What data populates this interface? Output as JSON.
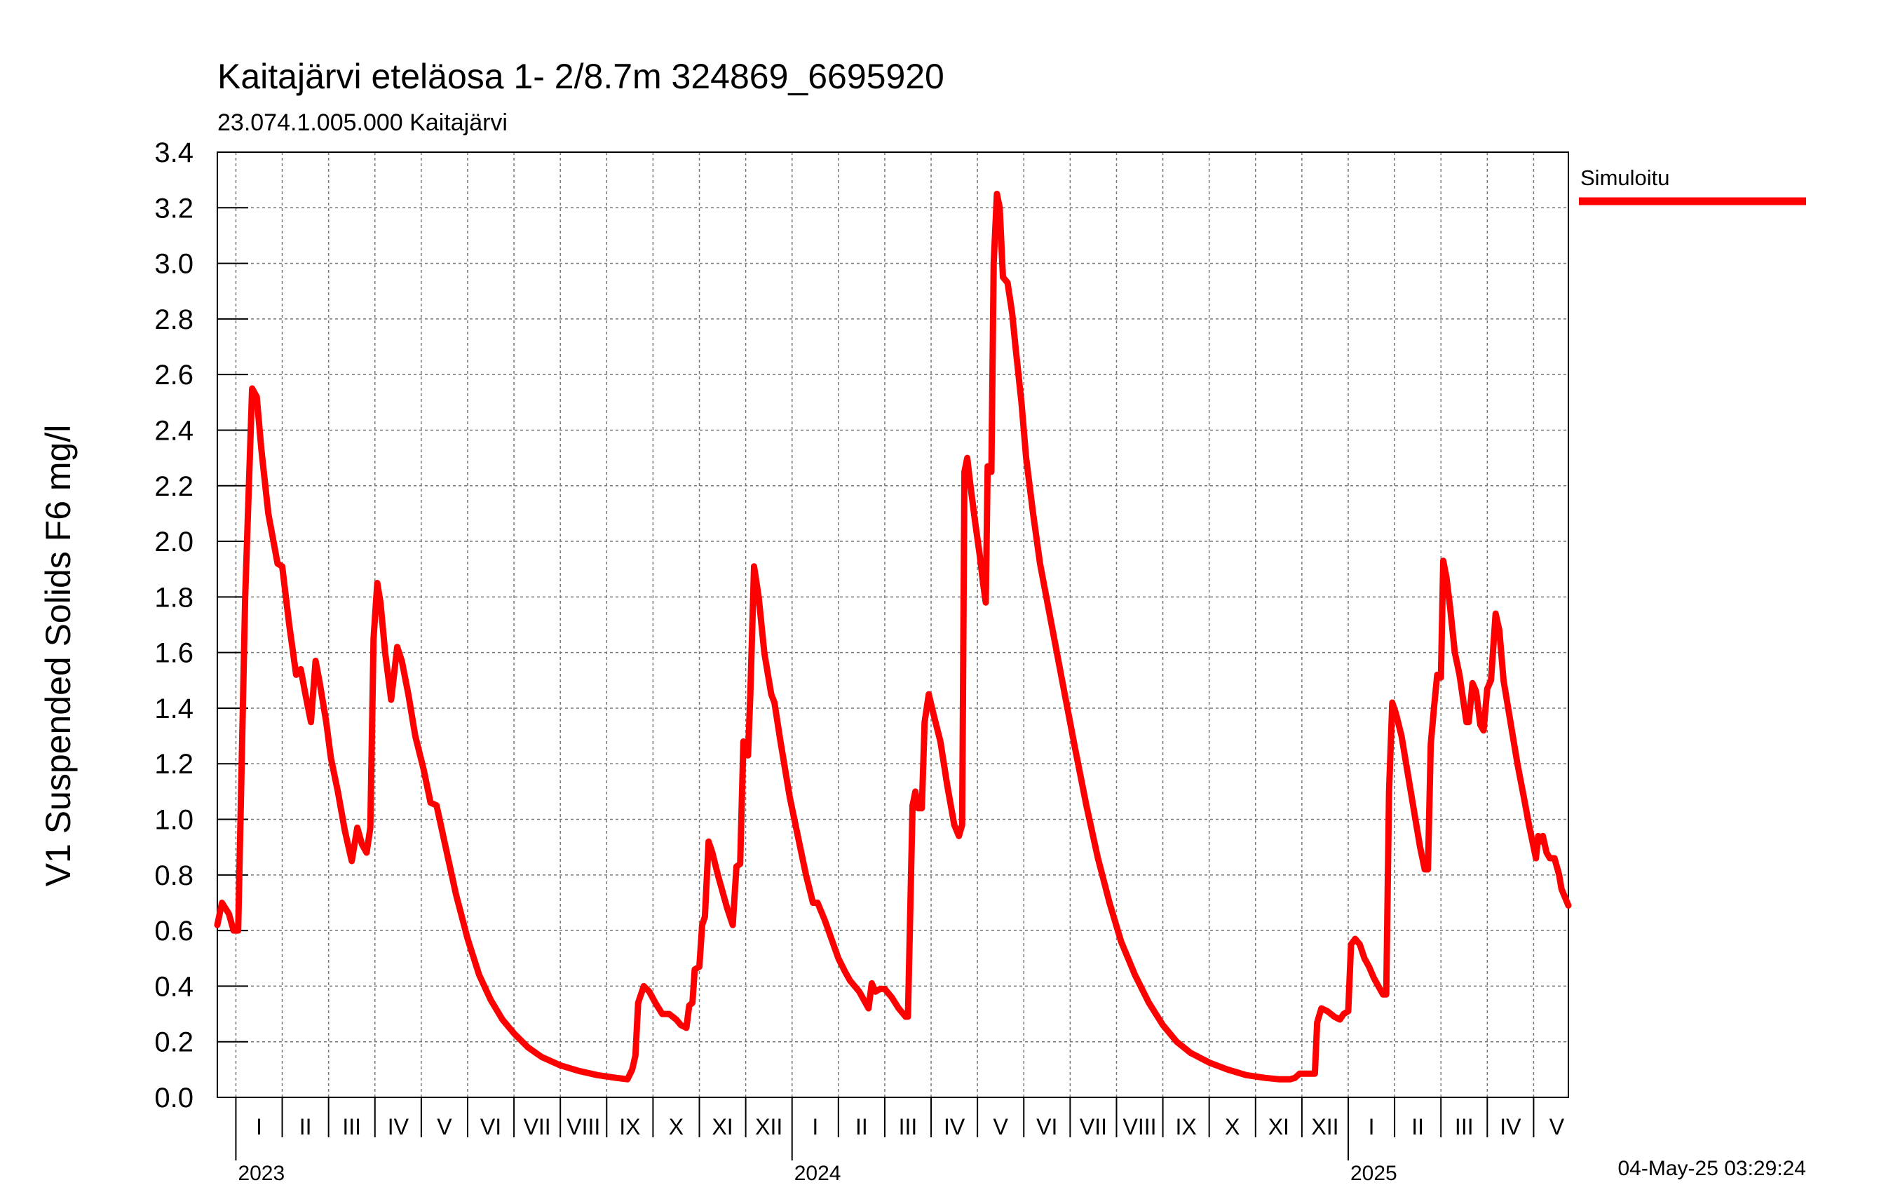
{
  "chart_data": {
    "type": "line",
    "title": "Kaitajärvi eteläosa  1- 2/8.7m  324869_6695920",
    "subtitle": "23.074.1.005.000 Kaitajärvi",
    "ylabel": "V1 Suspended Solids F6 mg/l",
    "xlabel": "",
    "ylim": [
      0,
      3.4
    ],
    "yticks": [
      "0.0",
      "0.2",
      "0.4",
      "0.6",
      "0.8",
      "1.0",
      "1.2",
      "1.4",
      "1.6",
      "1.8",
      "2.0",
      "2.2",
      "2.4",
      "2.6",
      "2.8",
      "3.0",
      "3.2",
      "3.4"
    ],
    "x_unit": "months since 2023-01-01",
    "xlim": [
      -0.4,
      28.75
    ],
    "year_labels": [
      {
        "label": "2023",
        "x": 0
      },
      {
        "label": "2024",
        "x": 12
      },
      {
        "label": "2025",
        "x": 24
      }
    ],
    "month_labels": [
      "I",
      "II",
      "III",
      "IV",
      "V",
      "VI",
      "VII",
      "VIII",
      "IX",
      "X",
      "XI",
      "XII",
      "I",
      "II",
      "III",
      "IV",
      "V",
      "VI",
      "VII",
      "VIII",
      "IX",
      "X",
      "XI",
      "XII",
      "I",
      "II",
      "III",
      "IV",
      "V"
    ],
    "legend": [
      {
        "label": "Simuloitu",
        "color": "#ff0000"
      }
    ],
    "timestamp": "04-May-25 03:29:24",
    "series": [
      {
        "name": "Simuloitu",
        "color": "#ff0000",
        "points": [
          [
            -0.4,
            0.62
          ],
          [
            -0.3,
            0.7
          ],
          [
            -0.15,
            0.66
          ],
          [
            -0.05,
            0.6
          ],
          [
            0.05,
            0.6
          ],
          [
            0.2,
            1.8
          ],
          [
            0.35,
            2.55
          ],
          [
            0.45,
            2.52
          ],
          [
            0.55,
            2.33
          ],
          [
            0.7,
            2.1
          ],
          [
            0.9,
            1.92
          ],
          [
            1.0,
            1.91
          ],
          [
            1.15,
            1.7
          ],
          [
            1.3,
            1.52
          ],
          [
            1.4,
            1.54
          ],
          [
            1.5,
            1.45
          ],
          [
            1.62,
            1.35
          ],
          [
            1.72,
            1.57
          ],
          [
            1.8,
            1.5
          ],
          [
            1.95,
            1.35
          ],
          [
            2.05,
            1.22
          ],
          [
            2.2,
            1.1
          ],
          [
            2.35,
            0.96
          ],
          [
            2.5,
            0.85
          ],
          [
            2.62,
            0.97
          ],
          [
            2.72,
            0.91
          ],
          [
            2.82,
            0.88
          ],
          [
            2.9,
            0.97
          ],
          [
            2.97,
            1.65
          ],
          [
            3.05,
            1.85
          ],
          [
            3.12,
            1.78
          ],
          [
            3.22,
            1.6
          ],
          [
            3.35,
            1.43
          ],
          [
            3.48,
            1.62
          ],
          [
            3.58,
            1.57
          ],
          [
            3.72,
            1.45
          ],
          [
            3.87,
            1.3
          ],
          [
            4.05,
            1.18
          ],
          [
            4.2,
            1.06
          ],
          [
            4.33,
            1.05
          ],
          [
            4.5,
            0.92
          ],
          [
            4.75,
            0.73
          ],
          [
            5.0,
            0.57
          ],
          [
            5.25,
            0.44
          ],
          [
            5.5,
            0.35
          ],
          [
            5.75,
            0.28
          ],
          [
            6.0,
            0.23
          ],
          [
            6.3,
            0.18
          ],
          [
            6.6,
            0.145
          ],
          [
            7.0,
            0.115
          ],
          [
            7.4,
            0.095
          ],
          [
            7.8,
            0.08
          ],
          [
            8.2,
            0.07
          ],
          [
            8.45,
            0.065
          ],
          [
            8.55,
            0.1
          ],
          [
            8.62,
            0.15
          ],
          [
            8.68,
            0.34
          ],
          [
            8.8,
            0.4
          ],
          [
            8.92,
            0.38
          ],
          [
            9.05,
            0.34
          ],
          [
            9.2,
            0.3
          ],
          [
            9.35,
            0.3
          ],
          [
            9.5,
            0.28
          ],
          [
            9.6,
            0.26
          ],
          [
            9.72,
            0.25
          ],
          [
            9.78,
            0.33
          ],
          [
            9.85,
            0.34
          ],
          [
            9.9,
            0.46
          ],
          [
            10.0,
            0.47
          ],
          [
            10.06,
            0.62
          ],
          [
            10.12,
            0.65
          ],
          [
            10.2,
            0.92
          ],
          [
            10.28,
            0.88
          ],
          [
            10.4,
            0.8
          ],
          [
            10.6,
            0.68
          ],
          [
            10.72,
            0.62
          ],
          [
            10.8,
            0.83
          ],
          [
            10.88,
            0.84
          ],
          [
            10.95,
            1.28
          ],
          [
            11.05,
            1.23
          ],
          [
            11.1,
            1.45
          ],
          [
            11.18,
            1.91
          ],
          [
            11.28,
            1.8
          ],
          [
            11.4,
            1.6
          ],
          [
            11.55,
            1.45
          ],
          [
            11.62,
            1.42
          ],
          [
            11.75,
            1.28
          ],
          [
            11.95,
            1.08
          ],
          [
            12.15,
            0.92
          ],
          [
            12.3,
            0.8
          ],
          [
            12.45,
            0.7
          ],
          [
            12.55,
            0.7
          ],
          [
            12.7,
            0.64
          ],
          [
            12.85,
            0.57
          ],
          [
            13.0,
            0.5
          ],
          [
            13.15,
            0.45
          ],
          [
            13.25,
            0.42
          ],
          [
            13.35,
            0.4
          ],
          [
            13.45,
            0.38
          ],
          [
            13.55,
            0.35
          ],
          [
            13.65,
            0.32
          ],
          [
            13.72,
            0.41
          ],
          [
            13.8,
            0.38
          ],
          [
            13.9,
            0.39
          ],
          [
            14.0,
            0.39
          ],
          [
            14.15,
            0.36
          ],
          [
            14.3,
            0.32
          ],
          [
            14.45,
            0.29
          ],
          [
            14.5,
            0.29
          ],
          [
            14.6,
            1.05
          ],
          [
            14.66,
            1.1
          ],
          [
            14.72,
            1.04
          ],
          [
            14.8,
            1.04
          ],
          [
            14.86,
            1.35
          ],
          [
            14.95,
            1.45
          ],
          [
            15.05,
            1.38
          ],
          [
            15.2,
            1.28
          ],
          [
            15.35,
            1.12
          ],
          [
            15.5,
            0.98
          ],
          [
            15.6,
            0.94
          ],
          [
            15.67,
            0.98
          ],
          [
            15.72,
            2.25
          ],
          [
            15.78,
            2.3
          ],
          [
            15.85,
            2.2
          ],
          [
            15.95,
            2.07
          ],
          [
            16.05,
            1.95
          ],
          [
            16.12,
            1.85
          ],
          [
            16.18,
            1.78
          ],
          [
            16.22,
            2.27
          ],
          [
            16.3,
            2.25
          ],
          [
            16.35,
            3.0
          ],
          [
            16.42,
            3.25
          ],
          [
            16.48,
            3.2
          ],
          [
            16.55,
            2.95
          ],
          [
            16.65,
            2.93
          ],
          [
            16.75,
            2.82
          ],
          [
            16.82,
            2.7
          ],
          [
            16.95,
            2.5
          ],
          [
            17.05,
            2.3
          ],
          [
            17.2,
            2.1
          ],
          [
            17.35,
            1.92
          ],
          [
            17.6,
            1.7
          ],
          [
            17.85,
            1.48
          ],
          [
            18.1,
            1.26
          ],
          [
            18.35,
            1.05
          ],
          [
            18.6,
            0.86
          ],
          [
            18.85,
            0.7
          ],
          [
            19.1,
            0.56
          ],
          [
            19.4,
            0.44
          ],
          [
            19.7,
            0.34
          ],
          [
            20.0,
            0.26
          ],
          [
            20.3,
            0.2
          ],
          [
            20.6,
            0.16
          ],
          [
            21.0,
            0.125
          ],
          [
            21.4,
            0.1
          ],
          [
            21.8,
            0.08
          ],
          [
            22.2,
            0.07
          ],
          [
            22.5,
            0.065
          ],
          [
            22.75,
            0.065
          ],
          [
            22.85,
            0.07
          ],
          [
            22.95,
            0.085
          ],
          [
            23.2,
            0.085
          ],
          [
            23.28,
            0.085
          ],
          [
            23.33,
            0.27
          ],
          [
            23.42,
            0.32
          ],
          [
            23.55,
            0.31
          ],
          [
            23.7,
            0.29
          ],
          [
            23.82,
            0.28
          ],
          [
            23.9,
            0.3
          ],
          [
            24.0,
            0.31
          ],
          [
            24.06,
            0.55
          ],
          [
            24.15,
            0.57
          ],
          [
            24.25,
            0.55
          ],
          [
            24.35,
            0.5
          ],
          [
            24.45,
            0.47
          ],
          [
            24.55,
            0.43
          ],
          [
            24.65,
            0.4
          ],
          [
            24.75,
            0.37
          ],
          [
            24.82,
            0.37
          ],
          [
            24.88,
            1.1
          ],
          [
            24.95,
            1.42
          ],
          [
            25.03,
            1.38
          ],
          [
            25.15,
            1.3
          ],
          [
            25.3,
            1.15
          ],
          [
            25.45,
            1.0
          ],
          [
            25.55,
            0.9
          ],
          [
            25.65,
            0.82
          ],
          [
            25.72,
            0.82
          ],
          [
            25.78,
            1.27
          ],
          [
            25.85,
            1.4
          ],
          [
            25.92,
            1.52
          ],
          [
            26.0,
            1.51
          ],
          [
            26.05,
            1.93
          ],
          [
            26.12,
            1.87
          ],
          [
            26.2,
            1.76
          ],
          [
            26.3,
            1.6
          ],
          [
            26.4,
            1.52
          ],
          [
            26.48,
            1.43
          ],
          [
            26.55,
            1.35
          ],
          [
            26.6,
            1.35
          ],
          [
            26.68,
            1.49
          ],
          [
            26.76,
            1.46
          ],
          [
            26.85,
            1.34
          ],
          [
            26.92,
            1.32
          ],
          [
            27.0,
            1.47
          ],
          [
            27.08,
            1.5
          ],
          [
            27.18,
            1.74
          ],
          [
            27.26,
            1.68
          ],
          [
            27.35,
            1.5
          ],
          [
            27.5,
            1.35
          ],
          [
            27.65,
            1.2
          ],
          [
            27.8,
            1.07
          ],
          [
            27.9,
            0.98
          ],
          [
            28.0,
            0.9
          ],
          [
            28.05,
            0.86
          ],
          [
            28.1,
            0.94
          ],
          [
            28.15,
            0.92
          ],
          [
            28.2,
            0.94
          ],
          [
            28.28,
            0.88
          ],
          [
            28.35,
            0.86
          ],
          [
            28.45,
            0.86
          ],
          [
            28.55,
            0.8
          ],
          [
            28.6,
            0.75
          ],
          [
            28.75,
            0.69
          ]
        ]
      }
    ]
  }
}
